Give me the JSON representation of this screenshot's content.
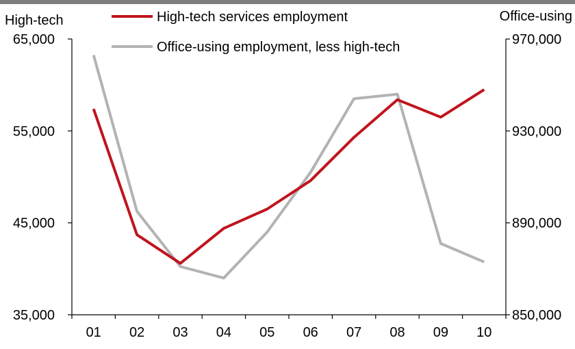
{
  "chart_data": {
    "type": "line",
    "x": [
      "01",
      "02",
      "03",
      "04",
      "05",
      "06",
      "07",
      "08",
      "09",
      "10"
    ],
    "left_axis": {
      "label": "High-tech",
      "ylim": [
        35000,
        65000
      ],
      "ticks": [
        "65,000",
        "55,000",
        "45,000",
        "35,000"
      ],
      "tick_values": [
        65000,
        55000,
        45000,
        35000
      ]
    },
    "right_axis": {
      "label": "Office-using",
      "ylim": [
        850000,
        970000
      ],
      "ticks": [
        "970,000",
        "930,000",
        "890,000",
        "850,000"
      ],
      "tick_values": [
        970000,
        930000,
        890000,
        850000
      ]
    },
    "series": [
      {
        "name": "High-tech services employment",
        "axis": "left",
        "color": "#c0141e",
        "values": [
          57400,
          43700,
          40600,
          44400,
          46500,
          49600,
          54300,
          58400,
          56500,
          59500
        ]
      },
      {
        "name": "Office-using employment, less high-tech",
        "axis": "right",
        "color": "#b3b3b3",
        "values": [
          963000,
          895000,
          871000,
          866000,
          886000,
          912000,
          944000,
          946000,
          881000,
          873000
        ]
      }
    ],
    "grid": false,
    "legend_position": "top"
  }
}
